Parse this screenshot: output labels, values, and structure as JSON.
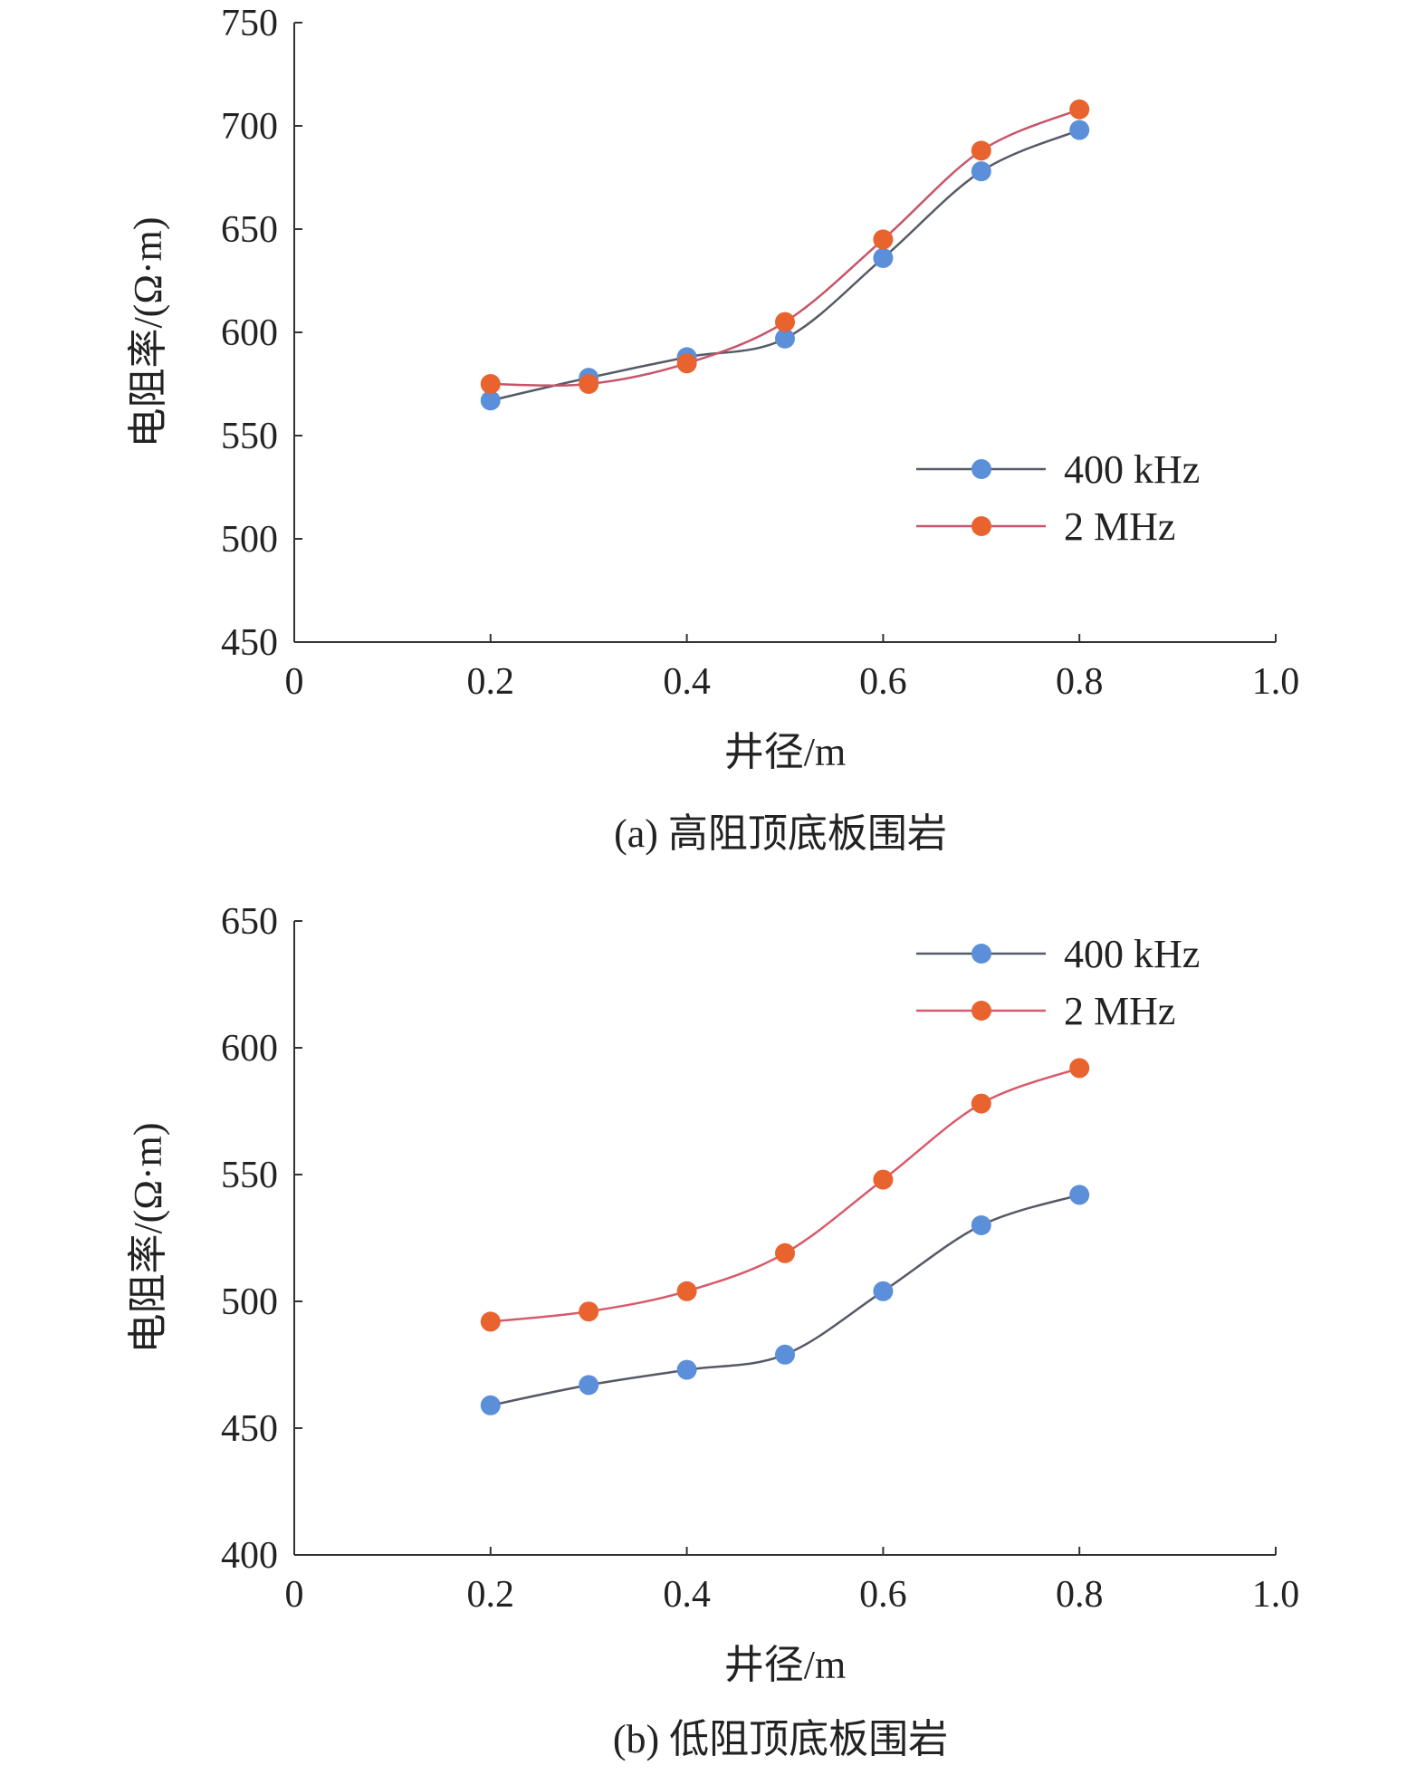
{
  "chart_data": [
    {
      "type": "line",
      "caption": "(a) 高阻顶底板围岩",
      "xlabel": "井径/m",
      "ylabel": "电阻率/(Ω·m)",
      "xlim": [
        0,
        1.0
      ],
      "ylim": [
        450,
        750
      ],
      "xticks": [
        "0",
        "0.2",
        "0.4",
        "0.6",
        "0.8",
        "1.0"
      ],
      "yticks": [
        "450",
        "500",
        "550",
        "600",
        "650",
        "700",
        "750"
      ],
      "legend": "right",
      "x": [
        0.2,
        0.3,
        0.4,
        0.5,
        0.6,
        0.7,
        0.8
      ],
      "series": [
        {
          "name": "400 kHz",
          "values": [
            567,
            578,
            588,
            597,
            636,
            678,
            698
          ],
          "color": "#5b8fd9",
          "line": "#555a66"
        },
        {
          "name": "2 MHz",
          "values": [
            575,
            575,
            585,
            605,
            645,
            688,
            708
          ],
          "color": "#e8632e",
          "line": "#c8556a"
        }
      ]
    },
    {
      "type": "line",
      "caption": "(b) 低阻顶底板围岩",
      "xlabel": "井径/m",
      "ylabel": "电阻率/(Ω·m)",
      "xlim": [
        0,
        1.0
      ],
      "ylim": [
        400,
        650
      ],
      "xticks": [
        "0",
        "0.2",
        "0.4",
        "0.6",
        "0.8",
        "1.0"
      ],
      "yticks": [
        "400",
        "450",
        "500",
        "550",
        "600",
        "650"
      ],
      "legend": "top-right",
      "x": [
        0.2,
        0.3,
        0.4,
        0.5,
        0.6,
        0.7,
        0.8
      ],
      "series": [
        {
          "name": "400 kHz",
          "values": [
            459,
            467,
            473,
            479,
            504,
            530,
            542
          ],
          "color": "#5b8fd9",
          "line": "#555a66"
        },
        {
          "name": "2 MHz",
          "values": [
            492,
            496,
            504,
            519,
            548,
            578,
            592
          ],
          "color": "#e8632e",
          "line": "#d85a6a"
        }
      ]
    }
  ]
}
